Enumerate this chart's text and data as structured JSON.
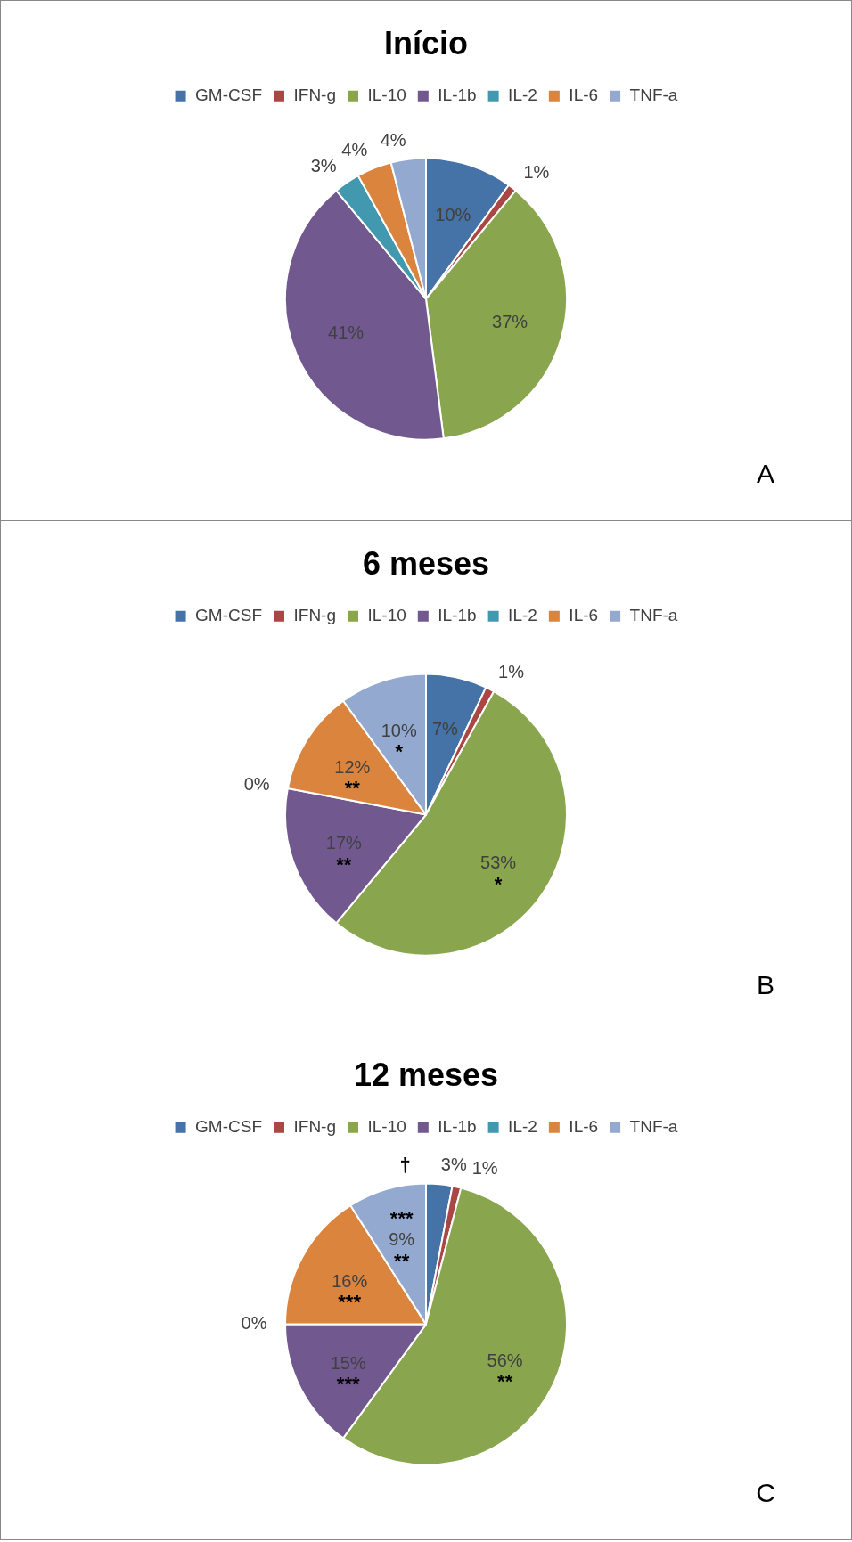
{
  "chart_data": [
    {
      "type": "pie",
      "title": "Início",
      "categories": [
        "GM-CSF",
        "IFN-g",
        "IL-10",
        "IL-1b",
        "IL-2",
        "IL-6",
        "TNF-a"
      ],
      "values": [
        10,
        1,
        37,
        41,
        3,
        4,
        4
      ],
      "value_labels": [
        "10%",
        "1%",
        "37%",
        "41%",
        "3%",
        "4%",
        "4%"
      ],
      "colors": [
        "#4572a7",
        "#aa4643",
        "#89a54e",
        "#71588f",
        "#4198af",
        "#db843d",
        "#93a9cf"
      ],
      "legend": "top",
      "annotations": [
        "A"
      ]
    },
    {
      "type": "pie",
      "title": "6 meses",
      "categories": [
        "GM-CSF",
        "IFN-g",
        "IL-10",
        "IL-1b",
        "IL-2",
        "IL-6",
        "TNF-a"
      ],
      "values": [
        7,
        1,
        53,
        17,
        0,
        12,
        10
      ],
      "value_labels": [
        "7%",
        "1%",
        "53%",
        "17%",
        "0%",
        "12%",
        "10%"
      ],
      "colors": [
        "#4572a7",
        "#aa4643",
        "#89a54e",
        "#71588f",
        "#4198af",
        "#db843d",
        "#93a9cf"
      ],
      "legend": "top",
      "annotations": [
        "B",
        {
          "text": "*",
          "x": "IL-10"
        },
        {
          "text": "**",
          "x": "IL-1b"
        },
        {
          "text": "**",
          "x": "IL-6"
        },
        {
          "text": "*",
          "x": "TNF-a"
        }
      ]
    },
    {
      "type": "pie",
      "title": "12 meses",
      "categories": [
        "GM-CSF",
        "IFN-g",
        "IL-10",
        "IL-1b",
        "IL-2",
        "IL-6",
        "TNF-a"
      ],
      "values": [
        3,
        1,
        56,
        15,
        0,
        16,
        9
      ],
      "value_labels": [
        "3%",
        "1%",
        "56%",
        "15%",
        "0%",
        "16%",
        "9%"
      ],
      "colors": [
        "#4572a7",
        "#aa4643",
        "#89a54e",
        "#71588f",
        "#4198af",
        "#db843d",
        "#93a9cf"
      ],
      "legend": "top",
      "annotations": [
        "C",
        {
          "text": "**",
          "x": "IL-10"
        },
        {
          "text": "***",
          "x": "IL-1b"
        },
        {
          "text": "***",
          "x": "IL-6"
        },
        {
          "text": "**",
          "x": "TNF-a"
        },
        {
          "text": "***",
          "x": "TNF-a"
        },
        {
          "text": "†",
          "x": "GM-CSF"
        }
      ]
    }
  ]
}
